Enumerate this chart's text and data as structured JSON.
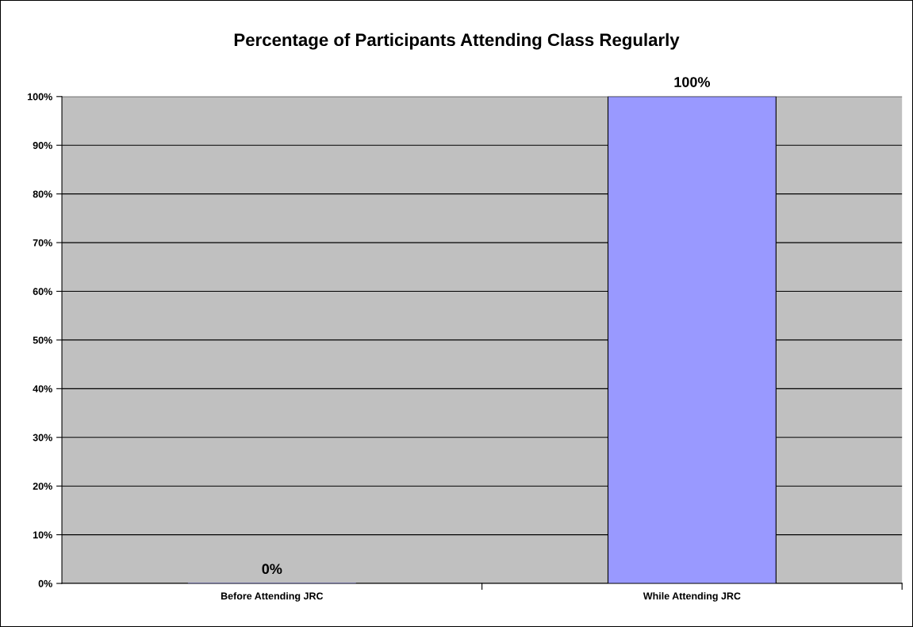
{
  "chart_data": {
    "type": "bar",
    "title": "Percentage of Participants Attending Class Regularly",
    "categories": [
      "Before Attending JRC",
      "While Attending JRC"
    ],
    "values": [
      0,
      100
    ],
    "color": "#9999ff",
    "value_labels": [
      "0%",
      "100%"
    ],
    "ylim": [
      0,
      100
    ],
    "yticks": [
      {
        "value": 0,
        "label": "0%"
      },
      {
        "value": 10,
        "label": "10%"
      },
      {
        "value": 20,
        "label": "20%"
      },
      {
        "value": 30,
        "label": "30%"
      },
      {
        "value": 40,
        "label": "40%"
      },
      {
        "value": 50,
        "label": "50%"
      },
      {
        "value": 60,
        "label": "60%"
      },
      {
        "value": 70,
        "label": "70%"
      },
      {
        "value": 80,
        "label": "80%"
      },
      {
        "value": 90,
        "label": "90%"
      },
      {
        "value": 100,
        "label": "100%"
      }
    ],
    "grid": "y"
  }
}
